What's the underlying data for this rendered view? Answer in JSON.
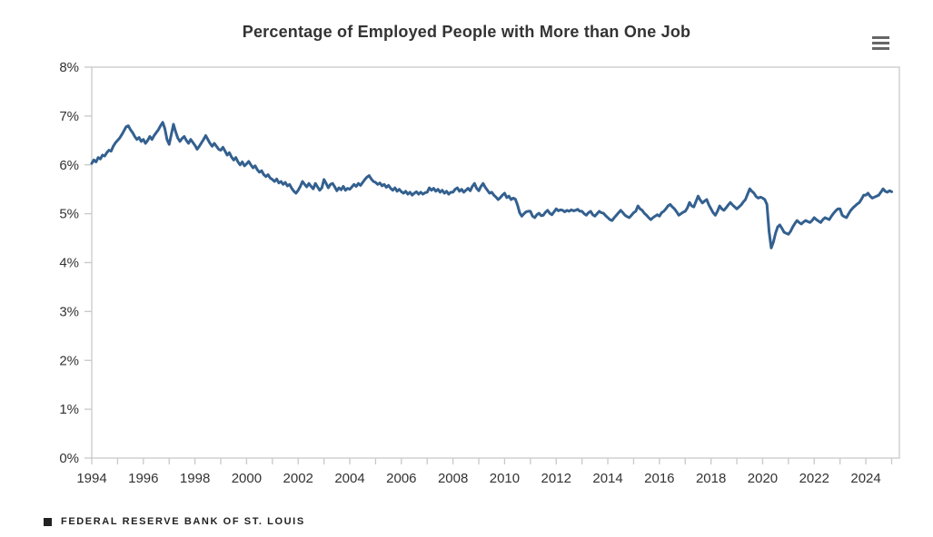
{
  "header": {
    "title": "Percentage of Employed People with More than One Job",
    "menu_icon": "hamburger-menu-icon"
  },
  "footer": {
    "marker_icon": "square-icon",
    "brand": "FEDERAL RESERVE BANK OF ST. LOUIS"
  },
  "colors": {
    "line": "#33608F",
    "axis": "#c9c9c9",
    "tick_text": "#333333",
    "title_text": "#333333",
    "footer_text": "#222222",
    "menu_icon": "#666666"
  },
  "chart_data": {
    "type": "line",
    "title": "Percentage of Employed People with More than One Job",
    "xlabel": "",
    "ylabel": "",
    "grid": false,
    "legend": "none",
    "xlim": [
      1994,
      2025.3
    ],
    "ylim": [
      0,
      8
    ],
    "x_start": "1994-01",
    "frequency": "monthly",
    "y_tick_labels": [
      {
        "value": 0,
        "text": "0%"
      },
      {
        "value": 1,
        "text": "1%"
      },
      {
        "value": 2,
        "text": "2%"
      },
      {
        "value": 3,
        "text": "3%"
      },
      {
        "value": 4,
        "text": "4%"
      },
      {
        "value": 5,
        "text": "5%"
      },
      {
        "value": 6,
        "text": "6%"
      },
      {
        "value": 7,
        "text": "7%"
      },
      {
        "value": 8,
        "text": "8%"
      }
    ],
    "x_tick_labels": [
      {
        "year": 1994,
        "text": "1994"
      },
      {
        "year": 1996,
        "text": "1996"
      },
      {
        "year": 1998,
        "text": "1998"
      },
      {
        "year": 2000,
        "text": "2000"
      },
      {
        "year": 2002,
        "text": "2002"
      },
      {
        "year": 2004,
        "text": "2004"
      },
      {
        "year": 2006,
        "text": "2006"
      },
      {
        "year": 2008,
        "text": "2008"
      },
      {
        "year": 2010,
        "text": "2010"
      },
      {
        "year": 2012,
        "text": "2012"
      },
      {
        "year": 2014,
        "text": "2014"
      },
      {
        "year": 2016,
        "text": "2016"
      },
      {
        "year": 2018,
        "text": "2018"
      },
      {
        "year": 2020,
        "text": "2020"
      },
      {
        "year": 2022,
        "text": "2022"
      },
      {
        "year": 2024,
        "text": "2024"
      }
    ],
    "minor_x_ticks_every_year": true,
    "values": [
      6.03,
      6.1,
      6.06,
      6.15,
      6.12,
      6.2,
      6.18,
      6.25,
      6.3,
      6.28,
      6.38,
      6.45,
      6.5,
      6.55,
      6.62,
      6.7,
      6.78,
      6.8,
      6.72,
      6.66,
      6.58,
      6.52,
      6.56,
      6.48,
      6.52,
      6.44,
      6.5,
      6.58,
      6.52,
      6.6,
      6.66,
      6.72,
      6.8,
      6.87,
      6.74,
      6.52,
      6.42,
      6.62,
      6.83,
      6.68,
      6.55,
      6.48,
      6.54,
      6.58,
      6.5,
      6.44,
      6.52,
      6.46,
      6.4,
      6.32,
      6.38,
      6.45,
      6.52,
      6.6,
      6.52,
      6.44,
      6.38,
      6.44,
      6.38,
      6.32,
      6.3,
      6.36,
      6.28,
      6.2,
      6.25,
      6.16,
      6.1,
      6.15,
      6.06,
      6.0,
      6.06,
      5.98,
      6.02,
      6.07,
      6.0,
      5.94,
      5.98,
      5.9,
      5.85,
      5.88,
      5.8,
      5.76,
      5.8,
      5.73,
      5.7,
      5.66,
      5.71,
      5.63,
      5.66,
      5.6,
      5.64,
      5.57,
      5.6,
      5.52,
      5.46,
      5.42,
      5.48,
      5.56,
      5.66,
      5.6,
      5.55,
      5.62,
      5.56,
      5.51,
      5.62,
      5.55,
      5.48,
      5.53,
      5.7,
      5.62,
      5.53,
      5.6,
      5.62,
      5.55,
      5.47,
      5.53,
      5.49,
      5.56,
      5.48,
      5.52,
      5.5,
      5.55,
      5.6,
      5.56,
      5.62,
      5.58,
      5.64,
      5.7,
      5.75,
      5.78,
      5.71,
      5.66,
      5.64,
      5.6,
      5.63,
      5.57,
      5.6,
      5.54,
      5.58,
      5.52,
      5.48,
      5.53,
      5.46,
      5.5,
      5.45,
      5.42,
      5.46,
      5.4,
      5.44,
      5.38,
      5.42,
      5.45,
      5.4,
      5.44,
      5.4,
      5.43,
      5.44,
      5.53,
      5.48,
      5.52,
      5.46,
      5.5,
      5.44,
      5.48,
      5.42,
      5.46,
      5.4,
      5.44,
      5.44,
      5.5,
      5.53,
      5.46,
      5.5,
      5.44,
      5.48,
      5.52,
      5.47,
      5.56,
      5.62,
      5.52,
      5.47,
      5.56,
      5.62,
      5.54,
      5.48,
      5.42,
      5.44,
      5.38,
      5.34,
      5.29,
      5.33,
      5.38,
      5.42,
      5.33,
      5.36,
      5.29,
      5.32,
      5.3,
      5.18,
      5.02,
      4.95,
      5.0,
      5.04,
      5.05,
      5.05,
      4.95,
      4.92,
      4.98,
      5.01,
      4.96,
      4.97,
      5.03,
      5.07,
      5.01,
      4.98,
      5.04,
      5.1,
      5.06,
      5.08,
      5.07,
      5.04,
      5.07,
      5.05,
      5.08,
      5.06,
      5.07,
      5.09,
      5.05,
      5.05,
      5.0,
      4.97,
      5.02,
      5.05,
      4.98,
      4.95,
      5.0,
      5.05,
      5.02,
      5.01,
      4.96,
      4.92,
      4.88,
      4.86,
      4.92,
      4.97,
      5.02,
      5.07,
      5.02,
      4.97,
      4.94,
      4.92,
      4.97,
      5.02,
      5.05,
      5.16,
      5.1,
      5.07,
      5.01,
      4.97,
      4.92,
      4.88,
      4.92,
      4.95,
      4.98,
      4.95,
      5.02,
      5.05,
      5.1,
      5.16,
      5.19,
      5.14,
      5.1,
      5.04,
      4.97,
      5.0,
      5.03,
      5.05,
      5.12,
      5.23,
      5.16,
      5.14,
      5.25,
      5.36,
      5.28,
      5.22,
      5.26,
      5.29,
      5.18,
      5.1,
      5.02,
      4.97,
      5.05,
      5.16,
      5.1,
      5.07,
      5.12,
      5.18,
      5.23,
      5.18,
      5.14,
      5.1,
      5.14,
      5.18,
      5.24,
      5.29,
      5.4,
      5.51,
      5.46,
      5.42,
      5.35,
      5.32,
      5.34,
      5.32,
      5.29,
      5.19,
      4.64,
      4.3,
      4.42,
      4.6,
      4.73,
      4.77,
      4.7,
      4.62,
      4.6,
      4.58,
      4.64,
      4.73,
      4.8,
      4.86,
      4.82,
      4.79,
      4.83,
      4.86,
      4.84,
      4.82,
      4.86,
      4.92,
      4.88,
      4.85,
      4.82,
      4.88,
      4.92,
      4.9,
      4.88,
      4.95,
      5.01,
      5.06,
      5.1,
      5.1,
      4.97,
      4.94,
      4.92,
      5.0,
      5.07,
      5.12,
      5.16,
      5.2,
      5.23,
      5.3,
      5.38,
      5.38,
      5.42,
      5.36,
      5.32,
      5.34,
      5.36,
      5.38,
      5.44,
      5.51,
      5.46,
      5.44,
      5.47,
      5.45
    ]
  }
}
